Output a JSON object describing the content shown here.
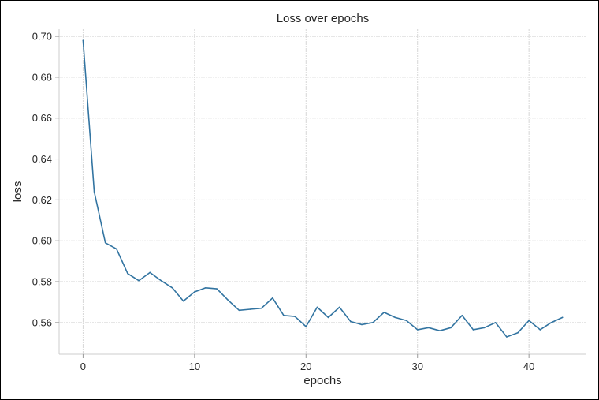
{
  "chart_data": {
    "type": "line",
    "title": "Loss over epochs",
    "xlabel": "epochs",
    "ylabel": "loss",
    "xlim": [
      -2.15,
      45.15
    ],
    "ylim": [
      0.5445,
      0.7035
    ],
    "xticks": [
      0,
      10,
      20,
      30,
      40
    ],
    "xtick_labels": [
      "0",
      "10",
      "20",
      "30",
      "40"
    ],
    "yticks": [
      0.56,
      0.58,
      0.6,
      0.62,
      0.64,
      0.66,
      0.68,
      0.7
    ],
    "ytick_labels": [
      "0.56",
      "0.58",
      "0.60",
      "0.62",
      "0.64",
      "0.66",
      "0.68",
      "0.70"
    ],
    "grid": true,
    "series": [
      {
        "name": "loss",
        "color": "#3274a1",
        "x": [
          0,
          1,
          2,
          3,
          4,
          5,
          6,
          7,
          8,
          9,
          10,
          11,
          12,
          13,
          14,
          15,
          16,
          17,
          18,
          19,
          20,
          21,
          22,
          23,
          24,
          25,
          26,
          27,
          28,
          29,
          30,
          31,
          32,
          33,
          34,
          35,
          36,
          37,
          38,
          39,
          40,
          41,
          42,
          43
        ],
        "values": [
          0.698,
          0.624,
          0.599,
          0.596,
          0.584,
          0.5805,
          0.5845,
          0.5805,
          0.577,
          0.5705,
          0.575,
          0.577,
          0.5765,
          0.571,
          0.566,
          0.5665,
          0.567,
          0.572,
          0.5635,
          0.563,
          0.558,
          0.5675,
          0.5625,
          0.5675,
          0.5605,
          0.559,
          0.56,
          0.565,
          0.5625,
          0.561,
          0.5565,
          0.5575,
          0.556,
          0.5575,
          0.5635,
          0.5565,
          0.5575,
          0.56,
          0.553,
          0.555,
          0.561,
          0.5565,
          0.56,
          0.5625
        ]
      }
    ]
  }
}
